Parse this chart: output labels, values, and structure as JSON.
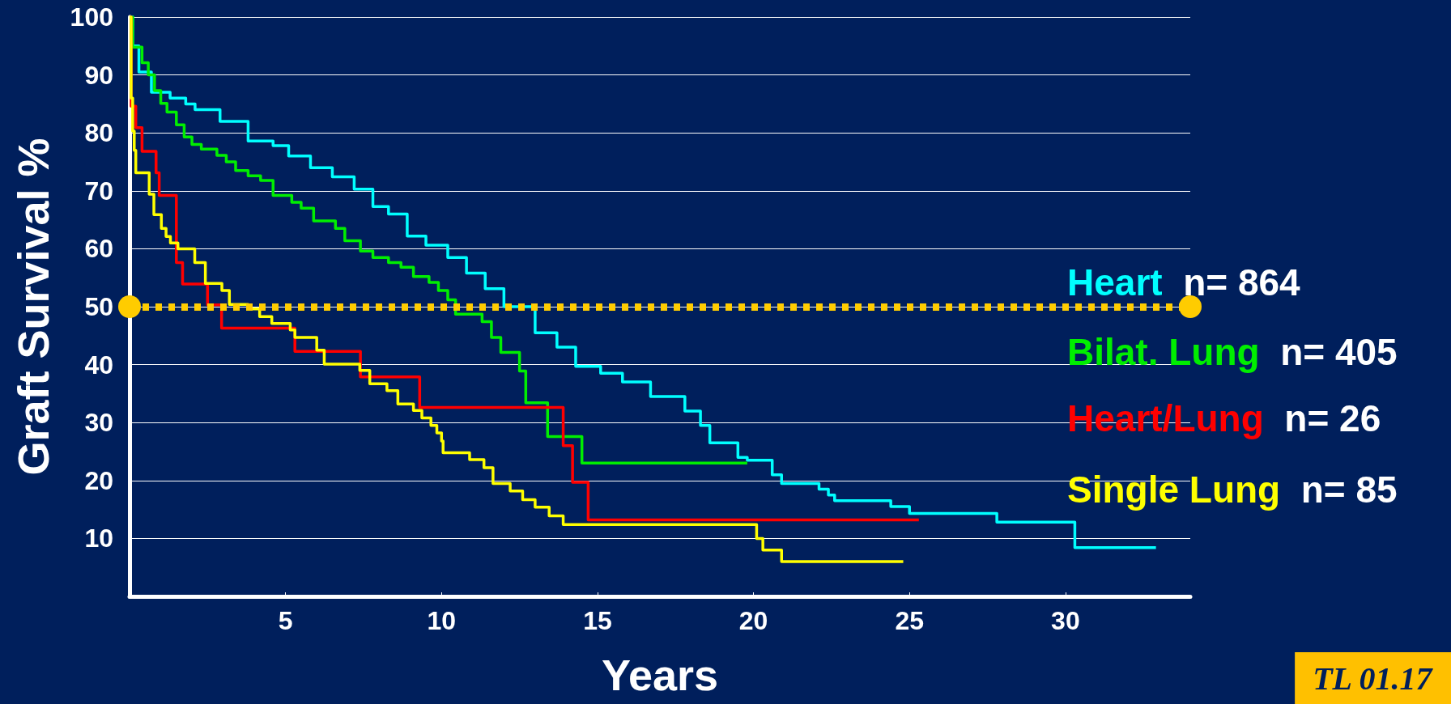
{
  "chart_data": {
    "type": "step",
    "xlabel": "Years",
    "ylabel": "Graft Survival %",
    "xlim": [
      0,
      34
    ],
    "xticks": [
      {
        "value": 0,
        "label": null
      },
      5,
      10,
      15,
      20,
      25,
      30
    ],
    "ylim": [
      0,
      100
    ],
    "yticks": [
      {
        "value": 0,
        "label": null
      },
      10,
      20,
      30,
      40,
      50,
      60,
      70,
      80,
      90,
      100
    ],
    "grid": "y",
    "ref_lines": [
      {
        "axis": "y",
        "value": 50,
        "label": null,
        "color": "#ffcc00",
        "line_style": "dotted"
      }
    ],
    "annotations": [
      "n= 864",
      "n= 405",
      "n= 26",
      "n= 85",
      "TL 01.17"
    ],
    "series": [
      {
        "name": "Heart",
        "color": "#00ffff",
        "x": [
          0,
          0.1,
          0.3,
          0.7,
          1.3,
          1.8,
          2.1,
          2.9,
          3.8,
          4.6,
          5.1,
          5.8,
          6.5,
          7.2,
          7.8,
          8.3,
          8.9,
          9.5,
          10.2,
          10.8,
          11.4,
          12,
          13,
          13.7,
          14.3,
          15.1,
          15.8,
          16.7,
          17.8,
          18.3,
          18.6,
          19.5,
          19.8,
          20.6,
          20.9,
          22.1,
          22.4,
          22.6,
          24.4,
          25,
          27.8,
          30.3,
          32.9
        ],
        "values": [
          100,
          95,
          90.5,
          87,
          86,
          85,
          84,
          82,
          78.6,
          77.8,
          76,
          74,
          72.4,
          70.3,
          67.3,
          66,
          62.2,
          60.6,
          58.5,
          55.8,
          53.1,
          50,
          45.5,
          43,
          39.7,
          38.5,
          37,
          34.5,
          32,
          29.5,
          26.5,
          24,
          23.5,
          21,
          19.5,
          18.5,
          17.5,
          16.5,
          15.5,
          14.3,
          12.8,
          8.4,
          8.4
        ]
      },
      {
        "name": "Bilat. Lung",
        "color": "#00ee00",
        "x": [
          0,
          0.1,
          0.4,
          0.6,
          0.8,
          1.0,
          1.2,
          1.5,
          1.75,
          2.0,
          2.3,
          2.8,
          3.1,
          3.4,
          3.8,
          4.2,
          4.6,
          5.2,
          5.5,
          5.9,
          6.6,
          6.9,
          7.4,
          7.8,
          8.3,
          8.7,
          9.1,
          9.6,
          9.9,
          10.2,
          10.45,
          11.3,
          11.6,
          11.9,
          12.5,
          12.7,
          13.4,
          14.5,
          19.8
        ],
        "values": [
          100,
          94.8,
          92.1,
          90,
          87.3,
          85.1,
          83.6,
          81.4,
          79.3,
          78,
          77.2,
          76.1,
          75,
          73.5,
          72.6,
          71.8,
          69.2,
          68,
          67,
          64.8,
          63.5,
          61.4,
          59.6,
          58.5,
          57.6,
          56.8,
          55.2,
          54.2,
          52.8,
          51.2,
          48.7,
          47.4,
          44.7,
          42.1,
          38.9,
          33.4,
          27.6,
          23,
          23
        ]
      },
      {
        "name": "Heart/Lung",
        "color": "#ff0000",
        "x": [
          0,
          0.05,
          0.2,
          0.4,
          0.85,
          0.95,
          1.5,
          1.7,
          2.5,
          2.95,
          5.3,
          7.4,
          9.3,
          13.9,
          14.2,
          14.7,
          25.3
        ],
        "values": [
          100,
          84.6,
          80.9,
          76.8,
          73.1,
          69.2,
          57.6,
          53.9,
          50.3,
          46.3,
          42.3,
          37.9,
          32.6,
          26,
          19.7,
          13.2,
          13.2
        ]
      },
      {
        "name": "Single Lung",
        "color": "#ffff00",
        "x": [
          0,
          0.05,
          0.1,
          0.15,
          0.2,
          0.63,
          0.78,
          1.02,
          1.17,
          1.31,
          1.55,
          2.09,
          2.43,
          2.96,
          3.2,
          3.8,
          4.17,
          4.56,
          5.15,
          5.3,
          6.0,
          6.24,
          7.38,
          7.7,
          8.25,
          8.6,
          9.1,
          9.37,
          9.66,
          9.85,
          10.0,
          10.05,
          10.9,
          11.36,
          11.65,
          12.2,
          12.6,
          13.0,
          13.45,
          13.9,
          20.1,
          20.3,
          20.9,
          24.8
        ],
        "values": [
          100,
          86,
          80.3,
          77,
          73.1,
          69.4,
          65.9,
          63.5,
          62.1,
          61,
          60,
          57.6,
          54,
          52.8,
          50.4,
          49.6,
          48.3,
          47.1,
          46,
          44.7,
          42.5,
          40.1,
          39,
          36.7,
          35.5,
          33.2,
          32.1,
          30.8,
          29.5,
          28.2,
          26.8,
          24.8,
          23.6,
          22.2,
          19.5,
          18.2,
          16.7,
          15.4,
          13.9,
          12.4,
          10,
          8,
          6,
          6
        ]
      }
    ]
  }
}
